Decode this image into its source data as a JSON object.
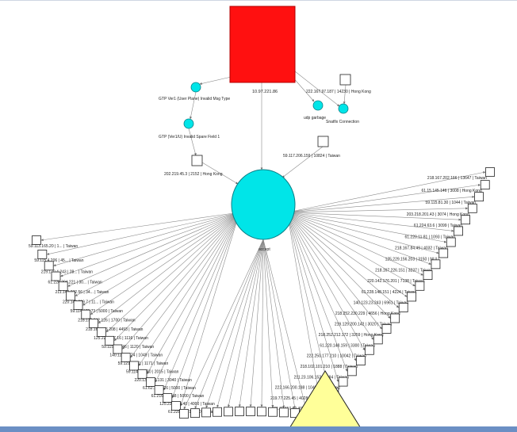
{
  "colors": {
    "edge": "#777777",
    "root_fill": "#ff1010",
    "hub_fill": "#00e5e8",
    "leaf_fill": "#ffffff",
    "leaf_stroke": "#222222",
    "triangle_fill": "#ffff99",
    "footer_bar": "#6b8fc4"
  },
  "root": {
    "label": "10.97.221.86"
  },
  "hub": {
    "label": "accept"
  },
  "branch_nodes": [
    {
      "label": "GTP Ver1 (User Plane) Invalid Msg Type"
    },
    {
      "label": "GTP (Ver1/U) Invalid Spare Field 1"
    },
    {
      "label": "udp garbage"
    },
    {
      "label": "Snatfix Connection"
    }
  ],
  "side_leaves": [
    {
      "label": "202.219.45.3 | 2152 | Hong Kong"
    },
    {
      "label": "59.117.206.159 | 10824 | Taiwan"
    },
    {
      "label": "222.167.97.187 | 14230 | Hong Kong"
    }
  ],
  "right_leaves": [
    {
      "label": "218.167.202.166 | 13647 | Taiwan"
    },
    {
      "label": "61.15.145.146 | 3008 | Hong Kong"
    },
    {
      "label": "59.115.81.30 | 1044 | Taiwan"
    },
    {
      "label": "203.218.201.43 | 3074 | Hong Kong"
    },
    {
      "label": "61.224.63.6 | 3099 | Taiwan"
    },
    {
      "label": "61.220.11.81 | 1093 | Taiwan"
    },
    {
      "label": "218.167.84.49 | 4032 | Taiwan"
    },
    {
      "label": "125.229.156.203 | 3150 | NULL"
    },
    {
      "label": "218.167.226.151 | 3237 | Taiwan"
    },
    {
      "label": "220.142.176.201 | 7138 | Taiwan"
    },
    {
      "label": "61.228.148.151 | 4224 | Taiwan"
    },
    {
      "label": "140.123.23.243 | 6961 | Taiwan"
    },
    {
      "label": "218.252.230.229 | 4656 | Hong Kong"
    },
    {
      "label": "219.129.200.142 | 3020 | Taiwan"
    },
    {
      "label": "218.252.212.172 | 3259 | Hong Kong"
    },
    {
      "label": "61.220.148.159 | 3300 | Taiwan"
    },
    {
      "label": "222.250.177.210 | 10042 | Taiwan"
    },
    {
      "label": "218.102.101.210 | 1888 | Taiwan"
    },
    {
      "label": "211.23.106.152 | 1694 | Taiwan"
    },
    {
      "label": "222.166.200.188 | 1048 | Hong Kong"
    },
    {
      "label": "219.77.225.45 | 4028 | Hong Kong"
    },
    {
      "label": "211.72.117.8 | 4075 | Taiwan"
    }
  ],
  "left_leaves": [
    {
      "label": "59.113.165.20 | 1... | Taiwan"
    },
    {
      "label": "59.115.4.206 | 45... | Taiwan"
    },
    {
      "label": "219.170.4.243 | 28... | Taiwan"
    },
    {
      "label": "61.226.204.221 | 30... | Taiwan"
    },
    {
      "label": "211.143.232.56 | 34... | Taiwan"
    },
    {
      "label": "220.143.229.7 | 11... | Taiwan"
    },
    {
      "label": "59.114.175.73 | 5000 | Taiwan"
    },
    {
      "label": "218.175.212.126 | 1700 | Taiwan"
    },
    {
      "label": "218.161.126.208 | 4493 | Taiwan"
    },
    {
      "label": "125.229.177.16 | 1116 | Taiwan"
    },
    {
      "label": "59.115.226.46 | 1120 | Taiwan"
    },
    {
      "label": "140.125.31.74 | 1049 | Taiwan"
    },
    {
      "label": "59.121.32.31 | 1171 | Taiwan"
    },
    {
      "label": "59.114.101.60 | 2015 | Taiwan"
    },
    {
      "label": "220.139.227.131 | 3040 | Taiwan"
    },
    {
      "label": "61.62.168.226 | 5000 | Taiwan"
    },
    {
      "label": "61.216.109.48 | 5000 | Taiwan"
    },
    {
      "label": "125.228.169.40 | 4000 | Taiwan"
    },
    {
      "label": "61.228.16.218 | 1073 | Taiwan"
    }
  ]
}
